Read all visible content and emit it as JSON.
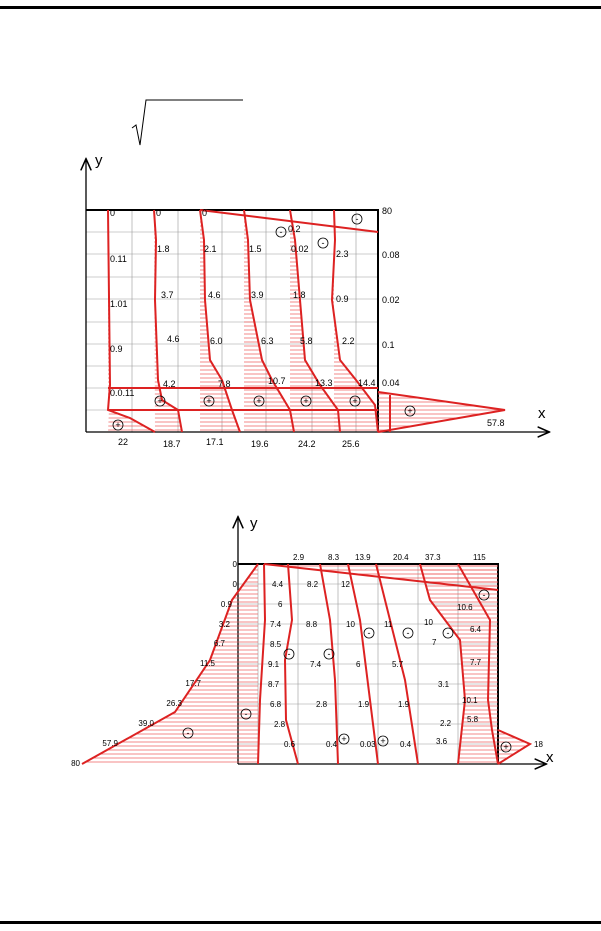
{
  "diagram1": {
    "axis_labels": {
      "y": "y",
      "x": "x"
    },
    "top_values": [
      "0",
      "0",
      "0"
    ],
    "col1_values": [
      "0.11",
      "1.01",
      "0.9",
      "0.0.11"
    ],
    "col2_values": [
      "1.8",
      "3.7",
      "4.6",
      "4.2"
    ],
    "col3_values": [
      "2.1",
      "4.6",
      "6.0",
      "7.8"
    ],
    "col4_values": [
      "1.5",
      "3.9",
      "6.3",
      "10.7"
    ],
    "col5_values": [
      "0.02",
      "1.8",
      "5.8",
      "13.3"
    ],
    "col6_values": [
      "0.2",
      "2.3",
      "0.9",
      "2.2",
      "14.4"
    ],
    "right_values": [
      "80",
      "0.08",
      "0.02",
      "0.1",
      "0.04"
    ],
    "bottom_values": [
      "22",
      "18.7",
      "17.1",
      "19.6",
      "24.2",
      "25.6"
    ],
    "tip_value": "57.8",
    "signs": {
      "plus": "+",
      "minus": "-"
    }
  },
  "diagram2": {
    "axis_labels": {
      "y": "y",
      "x": "x"
    },
    "top_values": [
      "2.9",
      "8.3",
      "13.9",
      "20.4",
      "37.3",
      "115"
    ],
    "left_values": [
      "0",
      "0",
      "0.9",
      "3.2",
      "6.7",
      "11.5",
      "17.7",
      "26.3",
      "39.0",
      "57.9",
      "80"
    ],
    "inner_col1": [
      "4.4",
      "6",
      "7.4",
      "8.5",
      "9.1",
      "8.7",
      "6.8",
      "2.8",
      "0.6"
    ],
    "inner_col2": [
      "8.2",
      "8.8",
      "7.4",
      "2.8",
      "0.4"
    ],
    "inner_col3": [
      "12",
      "10",
      "6",
      "1.9",
      "0.03"
    ],
    "inner_col4": [
      "11",
      "5.7",
      "1.9",
      "0.4"
    ],
    "inner_col5": [
      "10",
      "7",
      "3.1",
      "2.2",
      "3.6"
    ],
    "inner_col6": [
      "10.6",
      "6.4",
      "7.7",
      "10.1",
      "5.8"
    ],
    "tip_value": "18",
    "signs": {
      "plus": "+",
      "minus": "-"
    }
  }
}
